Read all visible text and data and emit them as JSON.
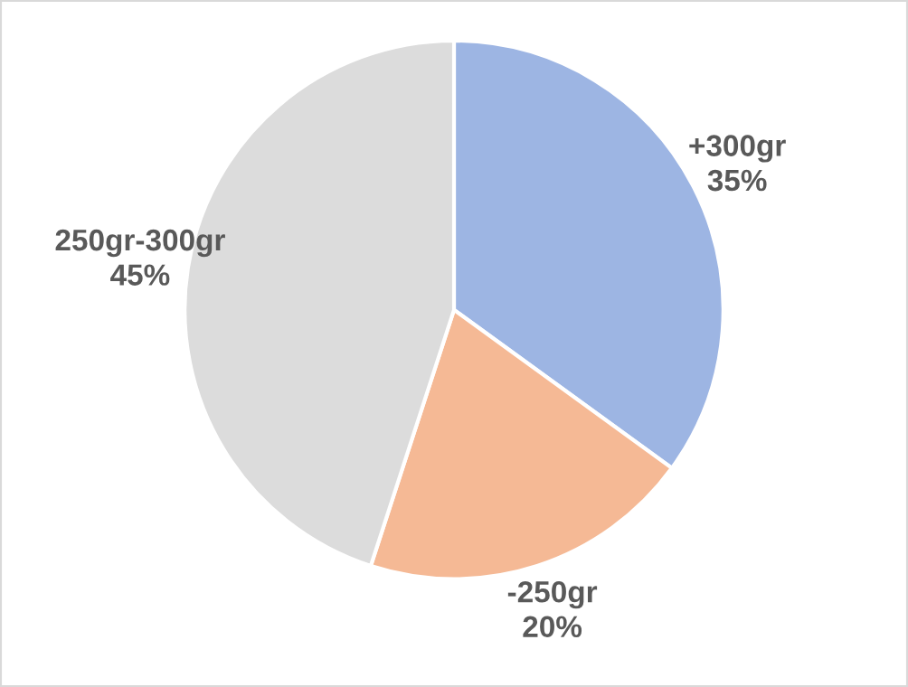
{
  "chart_data": {
    "type": "pie",
    "categories": [
      "+300gr",
      "-250gr",
      "250gr-300gr"
    ],
    "values": [
      35,
      20,
      45
    ],
    "value_labels": [
      "35%",
      "20%",
      "45%"
    ],
    "colors": [
      "#9db5e3",
      "#f5b995",
      "#dcdcdc"
    ],
    "legend": false
  }
}
